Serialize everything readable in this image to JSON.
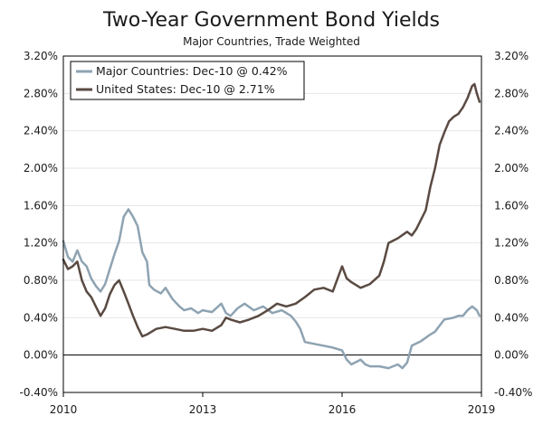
{
  "chart_data": {
    "type": "line",
    "title": "Two-Year Government Bond Yields",
    "subtitle": "Major Countries, Trade Weighted",
    "xlabel": "",
    "ylabel": "",
    "x_ticks": [
      "2010",
      "2013",
      "2016",
      "2019"
    ],
    "x_tick_values": [
      2010,
      2013,
      2016,
      2019
    ],
    "xlim": [
      2010,
      2019
    ],
    "ylim": [
      -0.4,
      3.2
    ],
    "y_ticks": [
      "-0.40%",
      "0.00%",
      "0.40%",
      "0.80%",
      "1.20%",
      "1.60%",
      "2.00%",
      "2.40%",
      "2.80%",
      "3.20%"
    ],
    "y_tick_values": [
      -0.4,
      0.0,
      0.4,
      0.8,
      1.2,
      1.6,
      2.0,
      2.4,
      2.8,
      3.2
    ],
    "zero_line": 0.0,
    "legend_position": "top-left",
    "series": [
      {
        "name": "Major Countries: Dec-10 @ 0.42%",
        "color": "#8ea3b2",
        "points": [
          [
            2010.0,
            1.22
          ],
          [
            2010.1,
            1.05
          ],
          [
            2010.2,
            1.0
          ],
          [
            2010.3,
            1.12
          ],
          [
            2010.4,
            1.0
          ],
          [
            2010.5,
            0.95
          ],
          [
            2010.6,
            0.82
          ],
          [
            2010.7,
            0.74
          ],
          [
            2010.8,
            0.68
          ],
          [
            2010.9,
            0.76
          ],
          [
            2011.0,
            0.92
          ],
          [
            2011.1,
            1.08
          ],
          [
            2011.2,
            1.22
          ],
          [
            2011.3,
            1.48
          ],
          [
            2011.4,
            1.56
          ],
          [
            2011.5,
            1.48
          ],
          [
            2011.6,
            1.38
          ],
          [
            2011.7,
            1.1
          ],
          [
            2011.8,
            1.0
          ],
          [
            2011.85,
            0.75
          ],
          [
            2011.95,
            0.7
          ],
          [
            2012.1,
            0.66
          ],
          [
            2012.2,
            0.72
          ],
          [
            2012.35,
            0.6
          ],
          [
            2012.5,
            0.52
          ],
          [
            2012.6,
            0.48
          ],
          [
            2012.75,
            0.5
          ],
          [
            2012.9,
            0.45
          ],
          [
            2013.0,
            0.48
          ],
          [
            2013.2,
            0.46
          ],
          [
            2013.4,
            0.55
          ],
          [
            2013.5,
            0.45
          ],
          [
            2013.6,
            0.42
          ],
          [
            2013.75,
            0.5
          ],
          [
            2013.9,
            0.55
          ],
          [
            2014.1,
            0.48
          ],
          [
            2014.3,
            0.52
          ],
          [
            2014.5,
            0.45
          ],
          [
            2014.7,
            0.48
          ],
          [
            2014.9,
            0.42
          ],
          [
            2015.0,
            0.36
          ],
          [
            2015.1,
            0.28
          ],
          [
            2015.2,
            0.14
          ],
          [
            2015.4,
            0.12
          ],
          [
            2015.6,
            0.1
          ],
          [
            2015.8,
            0.08
          ],
          [
            2016.0,
            0.05
          ],
          [
            2016.1,
            -0.05
          ],
          [
            2016.2,
            -0.1
          ],
          [
            2016.4,
            -0.05
          ],
          [
            2016.5,
            -0.1
          ],
          [
            2016.6,
            -0.12
          ],
          [
            2016.8,
            -0.12
          ],
          [
            2017.0,
            -0.14
          ],
          [
            2017.2,
            -0.1
          ],
          [
            2017.3,
            -0.14
          ],
          [
            2017.4,
            -0.08
          ],
          [
            2017.5,
            0.1
          ],
          [
            2017.7,
            0.15
          ],
          [
            2017.9,
            0.22
          ],
          [
            2018.0,
            0.25
          ],
          [
            2018.2,
            0.38
          ],
          [
            2018.4,
            0.4
          ],
          [
            2018.5,
            0.42
          ],
          [
            2018.6,
            0.42
          ],
          [
            2018.7,
            0.48
          ],
          [
            2018.8,
            0.52
          ],
          [
            2018.9,
            0.48
          ],
          [
            2018.96,
            0.42
          ]
        ]
      },
      {
        "name": "United States: Dec-10 @ 2.71%",
        "color": "#5a4a42",
        "points": [
          [
            2010.0,
            1.02
          ],
          [
            2010.1,
            0.92
          ],
          [
            2010.2,
            0.95
          ],
          [
            2010.3,
            1.0
          ],
          [
            2010.4,
            0.8
          ],
          [
            2010.5,
            0.68
          ],
          [
            2010.6,
            0.62
          ],
          [
            2010.7,
            0.52
          ],
          [
            2010.8,
            0.42
          ],
          [
            2010.9,
            0.5
          ],
          [
            2011.0,
            0.65
          ],
          [
            2011.1,
            0.75
          ],
          [
            2011.2,
            0.8
          ],
          [
            2011.3,
            0.68
          ],
          [
            2011.4,
            0.55
          ],
          [
            2011.5,
            0.42
          ],
          [
            2011.6,
            0.3
          ],
          [
            2011.7,
            0.2
          ],
          [
            2011.8,
            0.22
          ],
          [
            2012.0,
            0.28
          ],
          [
            2012.2,
            0.3
          ],
          [
            2012.4,
            0.28
          ],
          [
            2012.6,
            0.26
          ],
          [
            2012.8,
            0.26
          ],
          [
            2013.0,
            0.28
          ],
          [
            2013.2,
            0.26
          ],
          [
            2013.4,
            0.32
          ],
          [
            2013.5,
            0.4
          ],
          [
            2013.6,
            0.38
          ],
          [
            2013.8,
            0.35
          ],
          [
            2014.0,
            0.38
          ],
          [
            2014.2,
            0.42
          ],
          [
            2014.4,
            0.48
          ],
          [
            2014.6,
            0.55
          ],
          [
            2014.8,
            0.52
          ],
          [
            2015.0,
            0.55
          ],
          [
            2015.2,
            0.62
          ],
          [
            2015.4,
            0.7
          ],
          [
            2015.6,
            0.72
          ],
          [
            2015.8,
            0.68
          ],
          [
            2016.0,
            0.95
          ],
          [
            2016.1,
            0.82
          ],
          [
            2016.2,
            0.78
          ],
          [
            2016.4,
            0.72
          ],
          [
            2016.6,
            0.76
          ],
          [
            2016.8,
            0.85
          ],
          [
            2016.9,
            1.0
          ],
          [
            2017.0,
            1.2
          ],
          [
            2017.2,
            1.25
          ],
          [
            2017.4,
            1.32
          ],
          [
            2017.5,
            1.28
          ],
          [
            2017.6,
            1.35
          ],
          [
            2017.8,
            1.55
          ],
          [
            2017.9,
            1.8
          ],
          [
            2018.0,
            2.0
          ],
          [
            2018.1,
            2.25
          ],
          [
            2018.2,
            2.38
          ],
          [
            2018.3,
            2.5
          ],
          [
            2018.4,
            2.55
          ],
          [
            2018.5,
            2.58
          ],
          [
            2018.6,
            2.65
          ],
          [
            2018.7,
            2.75
          ],
          [
            2018.8,
            2.88
          ],
          [
            2018.85,
            2.9
          ],
          [
            2018.9,
            2.8
          ],
          [
            2018.96,
            2.71
          ]
        ]
      }
    ]
  }
}
